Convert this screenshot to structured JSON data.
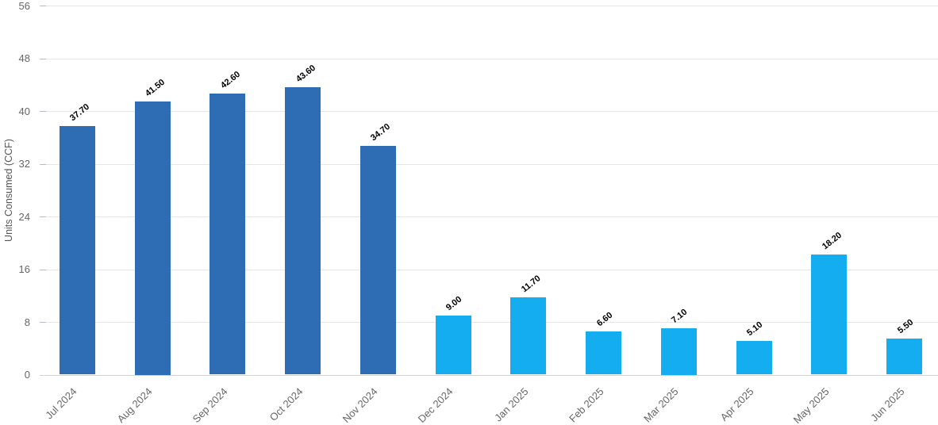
{
  "chart_data": {
    "type": "bar",
    "title": "",
    "xlabel": "",
    "ylabel": "Units Consumed (CCF)",
    "ylim": [
      0,
      56
    ],
    "y_interval": 8,
    "yticks": [
      0,
      8,
      16,
      24,
      32,
      40,
      48,
      56
    ],
    "grid": true,
    "legend": "none",
    "categories": [
      "Jul 2024",
      "Aug 2024",
      "Sep 2024",
      "Oct 2024",
      "Nov 2024",
      "Dec 2024",
      "Jan 2025",
      "Feb 2025",
      "Mar 2025",
      "Apr 2025",
      "May 2025",
      "Jun 2025"
    ],
    "values": [
      37.7,
      41.5,
      42.6,
      43.6,
      34.7,
      9.0,
      11.7,
      6.6,
      7.1,
      5.1,
      18.2,
      5.5
    ],
    "value_labels": [
      "37.70",
      "41.50",
      "42.60",
      "43.60",
      "34.70",
      "9.00",
      "11.70",
      "6.60",
      "7.10",
      "5.10",
      "18.20",
      "5.50"
    ],
    "bar_colors": [
      "#2e6cb4",
      "#2e6cb4",
      "#2e6cb4",
      "#2e6cb4",
      "#2e6cb4",
      "#14aef0",
      "#14aef0",
      "#14aef0",
      "#14aef0",
      "#14aef0",
      "#14aef0",
      "#14aef0"
    ],
    "colors": {
      "dark_blue": "#2e6cb4",
      "light_blue": "#14aef0",
      "grid": "#e6e6e6",
      "tick_mark": "#b6bcc6",
      "axis_line": "#c9d4ea",
      "tick_label": "#666666",
      "axis_title": "#555555",
      "data_label": "#000000"
    }
  }
}
